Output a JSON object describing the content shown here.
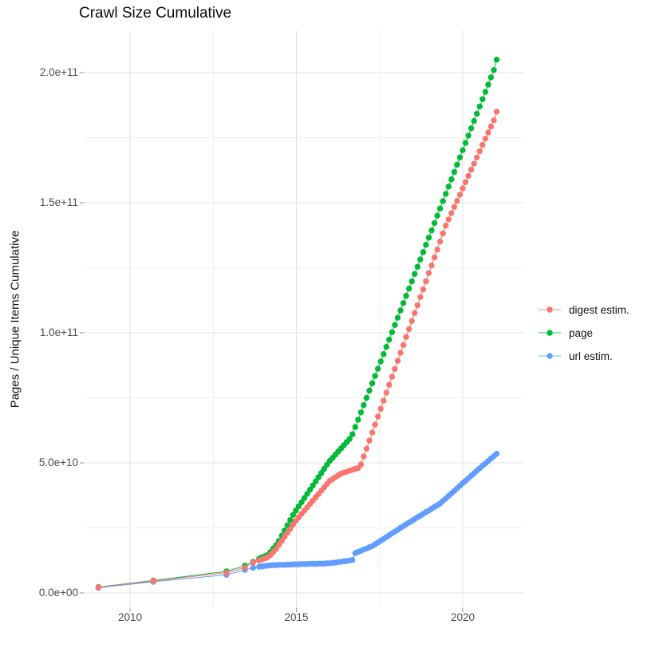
{
  "title": "Crawl Size Cumulative",
  "y_axis_title": "Pages / Unique Items Cumulative",
  "x_axis_title": "",
  "chart_data": {
    "type": "scatter",
    "title": "Crawl Size Cumulative",
    "xlabel": "",
    "ylabel": "Pages / Unique Items Cumulative",
    "grid": true,
    "legend_position": "right",
    "x_tick_labels": [
      "2010",
      "2015",
      "2020"
    ],
    "x_tick_values": [
      2010,
      2015,
      2020
    ],
    "x_minor_ticks": [
      2012.5,
      2017.5
    ],
    "y_tick_labels": [
      "0.0e+00",
      "5.0e+10",
      "1.0e+11",
      "1.5e+11",
      "2.0e+11"
    ],
    "y_tick_values_e9": [
      0,
      50,
      100,
      150,
      200
    ],
    "y_minor_ticks_e9": [
      25,
      75,
      125,
      175
    ],
    "xlim": [
      2008.6,
      2021.8
    ],
    "ylim_e9": [
      -6,
      216
    ],
    "value_unit": "1e9 (billions of pages / unique items)",
    "series": [
      {
        "name": "digest estim.",
        "color": "#F8766D",
        "early_points": [
          [
            2009.05,
            2.2
          ],
          [
            2010.7,
            4.6
          ],
          [
            2012.9,
            7.8
          ],
          [
            2013.45,
            9.8
          ],
          [
            2013.7,
            11.7
          ]
        ],
        "monthly": {
          "start_year": 2013.88,
          "step_years": 0.085,
          "values_e9": [
            12.5,
            12.9,
            13.3,
            13.7,
            14.6,
            15.8,
            16.9,
            18.5,
            20.0,
            21.6,
            23.1,
            24.7,
            26.3,
            27.8,
            29.1,
            30.4,
            31.7,
            32.9,
            34.2,
            35.5,
            36.8,
            38.0,
            39.3,
            40.6,
            41.9,
            43.1,
            43.8,
            44.5,
            45.2,
            45.9,
            46.3,
            46.6,
            47.0,
            47.3,
            47.7,
            48.0,
            49.4,
            52.5,
            55.5,
            58.6,
            61.7,
            64.7,
            67.8,
            70.8,
            73.9,
            77.0,
            80.0,
            83.1,
            86.1,
            89.2,
            92.3,
            95.3,
            98.4,
            101.4,
            104.5,
            107.6,
            110.6,
            113.7,
            116.7,
            119.8,
            122.9,
            125.9,
            129.0,
            132.0,
            135.1,
            138.2,
            141.2,
            143.6,
            146.0,
            148.4,
            150.7,
            153.1,
            155.5,
            157.9,
            160.3,
            162.7,
            165.0,
            167.4,
            169.8,
            172.2,
            174.6,
            177.0,
            179.3,
            181.7,
            185.0
          ]
        }
      },
      {
        "name": "page",
        "color": "#00BA38",
        "early_points": [
          [
            2009.05,
            2.3
          ],
          [
            2010.7,
            4.8
          ],
          [
            2012.9,
            8.3
          ],
          [
            2013.45,
            10.5
          ],
          [
            2013.7,
            12.0
          ]
        ],
        "monthly": {
          "start_year": 2013.88,
          "step_years": 0.085,
          "values_e9": [
            13.2,
            13.7,
            14.1,
            14.6,
            15.7,
            17.1,
            18.4,
            20.0,
            22.0,
            24.0,
            26.0,
            28.0,
            30.0,
            31.7,
            33.3,
            34.9,
            36.5,
            38.1,
            39.7,
            41.3,
            42.9,
            44.5,
            46.1,
            47.7,
            49.3,
            50.8,
            52.0,
            53.2,
            54.4,
            55.6,
            56.8,
            58.0,
            59.2,
            61.0,
            63.8,
            66.6,
            69.4,
            72.2,
            75.0,
            77.8,
            80.6,
            83.4,
            86.2,
            89.0,
            91.8,
            94.6,
            97.4,
            100.2,
            103.0,
            105.8,
            108.6,
            111.4,
            114.2,
            117.0,
            119.8,
            122.6,
            125.4,
            128.2,
            131.0,
            133.8,
            136.6,
            139.4,
            142.2,
            145.0,
            147.8,
            150.6,
            153.4,
            156.2,
            159.0,
            161.8,
            164.6,
            167.4,
            170.2,
            173.0,
            175.8,
            178.6,
            181.4,
            184.2,
            187.0,
            189.8,
            192.6,
            195.4,
            198.2,
            201.0,
            205.0
          ]
        }
      },
      {
        "name": "url estim.",
        "color": "#619CFF",
        "early_points": [
          [
            2009.05,
            2.0
          ],
          [
            2010.7,
            4.3
          ],
          [
            2012.9,
            7.0
          ],
          [
            2013.45,
            8.9
          ],
          [
            2013.7,
            9.7
          ]
        ],
        "monthly": {
          "start_year": 2013.88,
          "step_years": 0.085,
          "values_e9": [
            10.1,
            10.2,
            10.4,
            10.5,
            10.6,
            10.7,
            10.7,
            10.8,
            10.8,
            10.8,
            10.9,
            10.9,
            11.0,
            11.0,
            11.0,
            11.1,
            11.1,
            11.1,
            11.2,
            11.2,
            11.2,
            11.3,
            11.3,
            11.3,
            11.4,
            11.4,
            11.6,
            11.7,
            11.9,
            12.0,
            12.2,
            12.3,
            12.5,
            12.7,
            15.3,
            15.8,
            16.2,
            16.7,
            17.1,
            17.6,
            18.0,
            18.7,
            19.4,
            20.1,
            20.8,
            21.5,
            22.2,
            22.9,
            23.6,
            24.3,
            25.0,
            25.7,
            26.4,
            27.1,
            27.7,
            28.4,
            29.1,
            29.7,
            30.4,
            31.1,
            31.7,
            32.4,
            33.1,
            33.7,
            34.4,
            35.4,
            36.3,
            37.3,
            38.3,
            39.2,
            40.2,
            41.2,
            42.2,
            43.1,
            44.1,
            45.1,
            46.0,
            47.0,
            47.9,
            48.9,
            49.8,
            50.7,
            51.7,
            52.6,
            53.5
          ]
        }
      }
    ]
  },
  "colors": {
    "digest_estim": "#F8766D",
    "page": "#00BA38",
    "url_estim": "#619CFF",
    "grid_major": "#e3e3e3",
    "grid_minor": "#f0f0f0",
    "tick_mark": "#9a9a9a",
    "tick_text": "#4d4d4d"
  }
}
